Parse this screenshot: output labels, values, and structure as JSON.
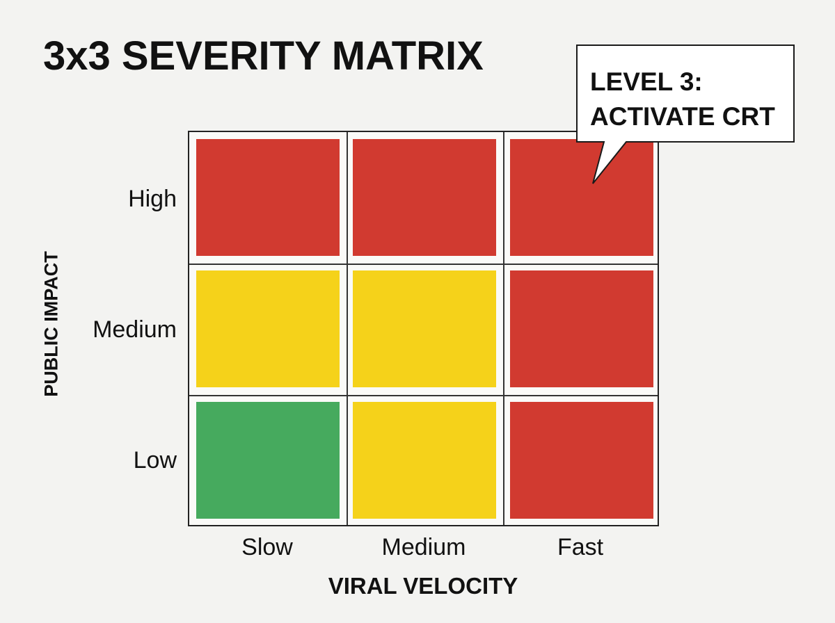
{
  "title": "3x3 SEVERITY MATRIX",
  "callout": {
    "line1": "LEVEL 3:",
    "line2": "ACTIVATE CRT"
  },
  "y_axis": {
    "title": "PUBLIC IMPACT",
    "labels": [
      "High",
      "Medium",
      "Low"
    ]
  },
  "x_axis": {
    "title": "VIRAL VELOCITY",
    "labels": [
      "Slow",
      "Medium",
      "Fast"
    ]
  },
  "colors": {
    "red": "#d13a30",
    "yellow": "#f5d21a",
    "green": "#46aa5e"
  },
  "matrix": [
    [
      "red",
      "red",
      "red"
    ],
    [
      "yellow",
      "yellow",
      "red"
    ],
    [
      "green",
      "yellow",
      "red"
    ]
  ]
}
